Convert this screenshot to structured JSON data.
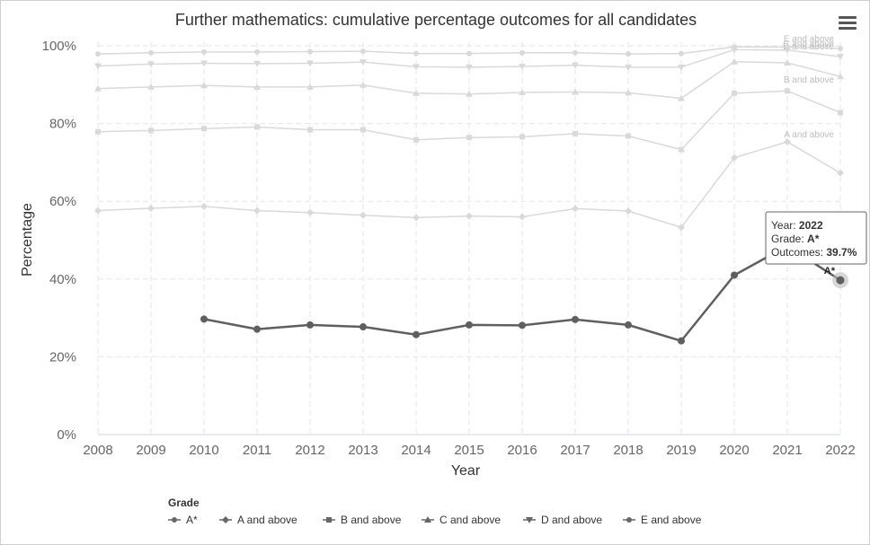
{
  "chart_data": {
    "type": "line",
    "title": "Further mathematics: cumulative percentage outcomes for all candidates",
    "xlabel": "Year",
    "ylabel": "Percentage",
    "x": [
      2008,
      2009,
      2010,
      2011,
      2012,
      2013,
      2014,
      2015,
      2016,
      2017,
      2018,
      2019,
      2020,
      2021,
      2022
    ],
    "ylim": [
      0,
      100
    ],
    "yticks": [
      "0%",
      "20%",
      "40%",
      "60%",
      "80%",
      "100%"
    ],
    "grid": true,
    "legend_title": "Grade",
    "legend_position": "bottom",
    "series": [
      {
        "name": "A*",
        "marker": "circle",
        "highlighted": true,
        "values": [
          null,
          null,
          29.7,
          27.1,
          28.2,
          27.7,
          25.7,
          28.2,
          28.1,
          29.6,
          28.2,
          24.1,
          41.0,
          48.5,
          39.7
        ]
      },
      {
        "name": "A and above",
        "marker": "diamond",
        "values": [
          57.6,
          58.2,
          58.7,
          57.6,
          57.1,
          56.4,
          55.8,
          56.2,
          56.0,
          58.1,
          57.5,
          53.3,
          71.2,
          75.3,
          67.3
        ]
      },
      {
        "name": "B and above",
        "marker": "square",
        "values": [
          77.9,
          78.2,
          78.7,
          79.1,
          78.4,
          78.4,
          75.8,
          76.4,
          76.6,
          77.4,
          76.8,
          73.3,
          87.8,
          88.4,
          82.8
        ]
      },
      {
        "name": "C and above",
        "marker": "triangle",
        "values": [
          89.0,
          89.4,
          89.8,
          89.4,
          89.4,
          89.9,
          87.8,
          87.6,
          88.0,
          88.1,
          87.9,
          86.5,
          95.9,
          95.6,
          92.1
        ]
      },
      {
        "name": "D and above",
        "marker": "triangle-down",
        "values": [
          94.8,
          95.3,
          95.5,
          95.4,
          95.5,
          95.8,
          94.6,
          94.5,
          94.7,
          95.0,
          94.5,
          94.5,
          99.0,
          98.9,
          97.2
        ]
      },
      {
        "name": "E and above",
        "marker": "circle",
        "values": [
          97.9,
          98.2,
          98.4,
          98.4,
          98.5,
          98.6,
          98.0,
          98.0,
          98.2,
          98.2,
          97.9,
          98.0,
          99.7,
          99.7,
          99.3
        ]
      }
    ],
    "tooltip": {
      "year_label": "Year: ",
      "year": "2022",
      "grade_label": "Grade: ",
      "grade": "A*",
      "outcome_label": "Outcomes: ",
      "outcome": "39.7%"
    },
    "point_label": "A*"
  },
  "colors": {
    "highlight": "#5f5f5f",
    "faded": "#d9d9d9",
    "grid": "#e6e6e6",
    "legend_marker": "#666666"
  },
  "menu_icon": "hamburger-menu-icon"
}
